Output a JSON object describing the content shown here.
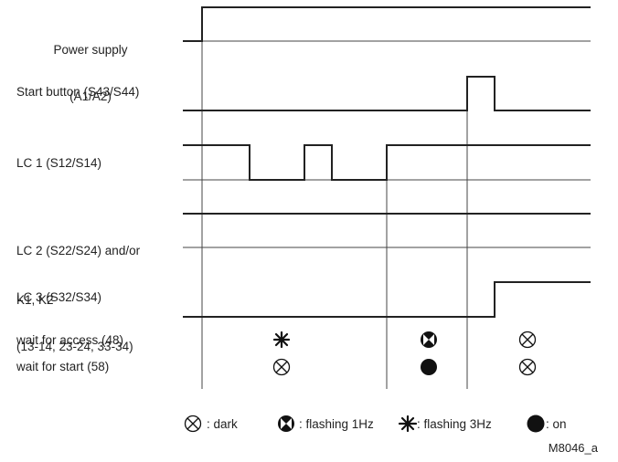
{
  "signals": {
    "power": {
      "label_line1": "Power supply",
      "label_line2": "(A1/A2)"
    },
    "start": {
      "label": "Start button (S43/S44)"
    },
    "lc1": {
      "label": "LC 1 (S12/S14)"
    },
    "lc23": {
      "label_line1": "LC 2 (S22/S24) and/or",
      "label_line2": "LC 3 (S32/S34)"
    },
    "k": {
      "label_line1": "K1, K2",
      "label_line2": "(13-14, 23-24, 33-34)"
    }
  },
  "led_rows": {
    "access": {
      "label": "wait for access (48)",
      "states": [
        "flashing-3hz-icon",
        "flashing-1hz-icon",
        "dark-icon"
      ]
    },
    "start": {
      "label": "wait for start (58)",
      "states": [
        "dark-icon",
        "on-icon",
        "dark-icon"
      ]
    }
  },
  "legend": {
    "dark": ": dark",
    "flash1": ": flashing 1Hz",
    "flash3": ": flashing 3Hz",
    "on": ": on"
  },
  "figure_code": "M8046_a",
  "colors": {
    "line": "#222222",
    "thin": "#444444"
  }
}
